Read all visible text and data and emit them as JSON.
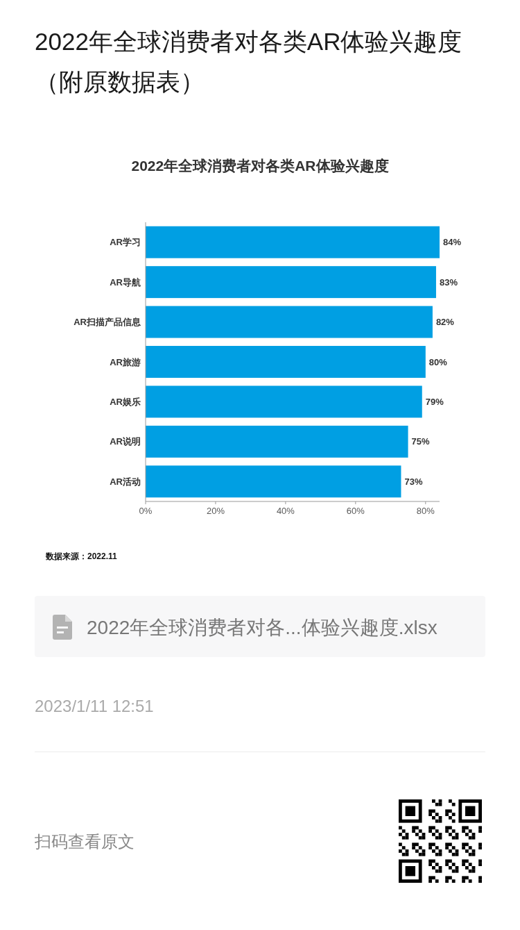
{
  "chart_data": {
    "type": "bar",
    "orientation": "horizontal",
    "title": "2022年全球消费者对各类AR体验兴趣度",
    "categories": [
      "AR学习",
      "AR导航",
      "AR扫描产品信息",
      "AR旅游",
      "AR娱乐",
      "AR说明",
      "AR活动"
    ],
    "values": [
      84,
      83,
      82,
      80,
      79,
      75,
      73
    ],
    "color": "#009fe3",
    "value_labels": [
      "84%",
      "83%",
      "82%",
      "80%",
      "79%",
      "75%",
      "73%"
    ],
    "xlim": [
      0,
      84
    ],
    "xticks": [
      {
        "value": 0,
        "label": "0%"
      },
      {
        "value": 20,
        "label": "20%"
      },
      {
        "value": 40,
        "label": "40%"
      },
      {
        "value": 60,
        "label": "60%"
      },
      {
        "value": 80,
        "label": "80%"
      }
    ],
    "annotations": [
      "2022年全球消费者对各类AR体验兴趣度（附原数据表）",
      "数据来源：2022.11",
      "2022年全球消费者对各...体验兴趣度.xlsx",
      "2023/1/11 12:51",
      "扫码查看原文"
    ]
  }
}
